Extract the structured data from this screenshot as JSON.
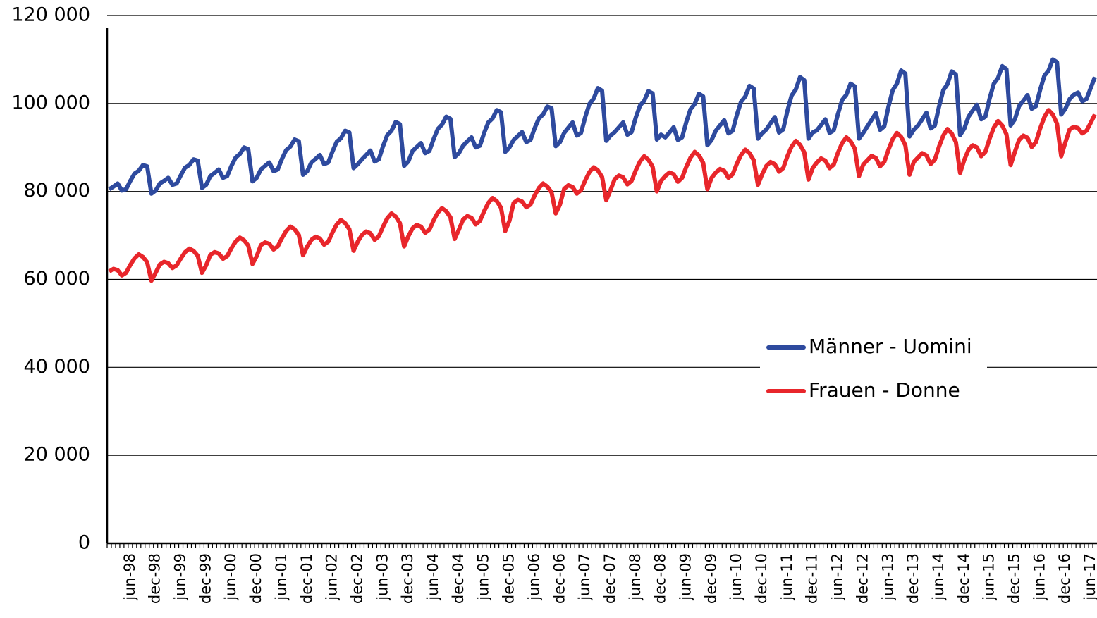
{
  "chart_data": {
    "type": "line",
    "categories": [
      null,
      null,
      null,
      null,
      null,
      "jun-98",
      null,
      null,
      null,
      null,
      null,
      "dec-98",
      null,
      null,
      null,
      null,
      null,
      "jun-99",
      null,
      null,
      null,
      null,
      null,
      "dec-99",
      null,
      null,
      null,
      null,
      null,
      "jun-00",
      null,
      null,
      null,
      null,
      null,
      "dec-00",
      null,
      null,
      null,
      null,
      null,
      "jun-01",
      null,
      null,
      null,
      null,
      null,
      "dec-01",
      null,
      null,
      null,
      null,
      null,
      "jun-02",
      null,
      null,
      null,
      null,
      null,
      "dec-02",
      null,
      null,
      null,
      null,
      null,
      "jun-03",
      null,
      null,
      null,
      null,
      null,
      "dec-03",
      null,
      null,
      null,
      null,
      null,
      "jun-04",
      null,
      null,
      null,
      null,
      null,
      "dec-04",
      null,
      null,
      null,
      null,
      null,
      "jun-05",
      null,
      null,
      null,
      null,
      null,
      "dec-05",
      null,
      null,
      null,
      null,
      null,
      "jun-06",
      null,
      null,
      null,
      null,
      null,
      "dec-06",
      null,
      null,
      null,
      null,
      null,
      "jun-07",
      null,
      null,
      null,
      null,
      null,
      "dec-07",
      null,
      null,
      null,
      null,
      null,
      "jun-08",
      null,
      null,
      null,
      null,
      null,
      "dec-08",
      null,
      null,
      null,
      null,
      null,
      "jun-09",
      null,
      null,
      null,
      null,
      null,
      "dec-09",
      null,
      null,
      null,
      null,
      null,
      "jun-10",
      null,
      null,
      null,
      null,
      null,
      "dec-10",
      null,
      null,
      null,
      null,
      null,
      "jun-11",
      null,
      null,
      null,
      null,
      null,
      "dec-11",
      null,
      null,
      null,
      null,
      null,
      "jun-12",
      null,
      null,
      null,
      null,
      null,
      "dec-12",
      null,
      null,
      null,
      null,
      null,
      "jun-13",
      null,
      null,
      null,
      null,
      null,
      "dec-13",
      null,
      null,
      null,
      null,
      null,
      "jun-14",
      null,
      null,
      null,
      null,
      null,
      "dec-14",
      null,
      null,
      null,
      null,
      null,
      "jun-15",
      null,
      null,
      null,
      null,
      null,
      "dec-15",
      null,
      null,
      null,
      null,
      null,
      "jun-16",
      null,
      null,
      null,
      null,
      null,
      "dec-16",
      null,
      null,
      null,
      null,
      null,
      "jun-17",
      null
    ],
    "series": [
      {
        "name": "Männer - Uomini",
        "color": "#2e4a9e",
        "values": [
          80500,
          81100,
          81800,
          80200,
          80500,
          82400,
          84050,
          84700,
          86000,
          85700,
          79500,
          80200,
          81800,
          82400,
          83100,
          81500,
          81800,
          83700,
          85400,
          86000,
          87300,
          87000,
          80800,
          81500,
          83500,
          84200,
          85000,
          83100,
          83500,
          85800,
          87700,
          88500,
          90000,
          89600,
          82300,
          83100,
          85000,
          85800,
          86600,
          84600,
          85000,
          87400,
          89400,
          90200,
          91800,
          91400,
          83800,
          84600,
          86600,
          87400,
          88300,
          86200,
          86600,
          89100,
          91300,
          92100,
          93800,
          93400,
          85300,
          86200,
          87300,
          88300,
          89300,
          86800,
          87300,
          90300,
          92800,
          93800,
          95800,
          95300,
          85800,
          86800,
          89200,
          90100,
          91000,
          88700,
          89200,
          91900,
          94200,
          95200,
          97000,
          96500,
          87800,
          88700,
          90400,
          91400,
          92300,
          90000,
          90400,
          93300,
          95700,
          96600,
          98500,
          98000,
          89000,
          90000,
          91700,
          92600,
          93500,
          91200,
          91700,
          94400,
          96600,
          97500,
          99300,
          98900,
          90300,
          91200,
          93300,
          94500,
          95700,
          92700,
          93300,
          96900,
          99900,
          101100,
          103500,
          102900,
          91500,
          92700,
          93500,
          94600,
          95700,
          92900,
          93500,
          96800,
          99500,
          100600,
          102800,
          102300,
          91800,
          92900,
          92300,
          93400,
          94600,
          91700,
          92300,
          95800,
          98700,
          99900,
          102200,
          101600,
          90500,
          91700,
          93800,
          95000,
          96200,
          93200,
          93800,
          97400,
          100400,
          101600,
          104000,
          103400,
          92000,
          93200,
          94100,
          95500,
          96900,
          93400,
          94100,
          98300,
          101800,
          103200,
          106000,
          105300,
          92000,
          93400,
          93900,
          95100,
          96400,
          93300,
          93900,
          97600,
          100800,
          102000,
          104500,
          103900,
          92000,
          93300,
          94800,
          96300,
          97800,
          94000,
          94800,
          99300,
          103000,
          104500,
          107500,
          106800,
          92500,
          94000,
          95000,
          96400,
          97900,
          94300,
          95000,
          99300,
          103000,
          104400,
          107300,
          106600,
          92800,
          94300,
          97000,
          98400,
          99700,
          96400,
          97000,
          101100,
          104500,
          105800,
          108500,
          107800,
          95000,
          96400,
          99400,
          100600,
          101900,
          98800,
          99400,
          103100,
          106300,
          107500,
          110000,
          109400,
          97500,
          98800,
          101000,
          102000,
          102500,
          100500,
          101000,
          103500,
          106000
        ]
      },
      {
        "name": "Frauen - Donne",
        "color": "#e8262b",
        "values": [
          61800,
          62400,
          62100,
          60900,
          61500,
          63300,
          64800,
          65700,
          65100,
          63900,
          59700,
          61500,
          63400,
          64000,
          63700,
          62600,
          63200,
          64800,
          66200,
          67000,
          66500,
          65400,
          61500,
          63200,
          65600,
          66200,
          65900,
          64700,
          65300,
          67100,
          68600,
          69500,
          68900,
          67700,
          63500,
          65300,
          67800,
          68400,
          68100,
          66800,
          67500,
          69400,
          71000,
          72000,
          71400,
          70100,
          65500,
          67500,
          69000,
          69700,
          69300,
          67900,
          68600,
          70700,
          72500,
          73500,
          72800,
          71400,
          66500,
          68600,
          70100,
          70900,
          70500,
          69000,
          69800,
          72000,
          73900,
          75000,
          74300,
          72800,
          67500,
          69800,
          71600,
          72400,
          72000,
          70600,
          71300,
          73400,
          75200,
          76200,
          75500,
          74100,
          69200,
          71300,
          73600,
          74400,
          74000,
          72500,
          73300,
          75500,
          77400,
          78500,
          77800,
          76300,
          71000,
          73300,
          77400,
          78100,
          77700,
          76400,
          77000,
          79100,
          80800,
          81800,
          81100,
          79800,
          75000,
          77000,
          80600,
          81400,
          81000,
          79500,
          80300,
          82500,
          84400,
          85500,
          84800,
          83300,
          78000,
          80300,
          82800,
          83600,
          83200,
          81600,
          82400,
          84800,
          86800,
          88000,
          87200,
          85600,
          80000,
          82400,
          83500,
          84300,
          83900,
          82200,
          83100,
          85600,
          87700,
          89000,
          88200,
          86500,
          80500,
          83100,
          84300,
          85100,
          84700,
          83100,
          83900,
          86300,
          88300,
          89500,
          88700,
          87100,
          81500,
          83900,
          85800,
          86700,
          86200,
          84500,
          85300,
          88000,
          90200,
          91500,
          90600,
          88900,
          82700,
          85300,
          86600,
          87500,
          87000,
          85300,
          86100,
          88800,
          91000,
          92300,
          91400,
          89700,
          83500,
          86100,
          87100,
          88100,
          87600,
          85700,
          86700,
          89500,
          91900,
          93300,
          92400,
          90500,
          83800,
          86700,
          87700,
          88700,
          88200,
          86200,
          87200,
          90200,
          92700,
          94200,
          93200,
          91200,
          84200,
          87200,
          89500,
          90500,
          90000,
          88000,
          89000,
          92000,
          94500,
          96000,
          95000,
          93000,
          86000,
          89000,
          91700,
          92700,
          92200,
          90100,
          91200,
          94300,
          96900,
          98500,
          97500,
          95400,
          88000,
          91200,
          94100,
          94700,
          94400,
          93200,
          93800,
          95600,
          97500
        ]
      }
    ],
    "ylim": [
      0,
      120000
    ],
    "yticks": [
      0,
      {
        "value": 20000,
        "label": "20 000"
      },
      {
        "value": 40000,
        "label": "40 000"
      },
      {
        "value": 60000,
        "label": "60 000"
      },
      {
        "value": 80000,
        "label": "80 000"
      },
      {
        "value": 100000,
        "label": "100 000"
      },
      {
        "value": 120000,
        "label": "120 000"
      }
    ],
    "grid": true,
    "legend": "right"
  }
}
